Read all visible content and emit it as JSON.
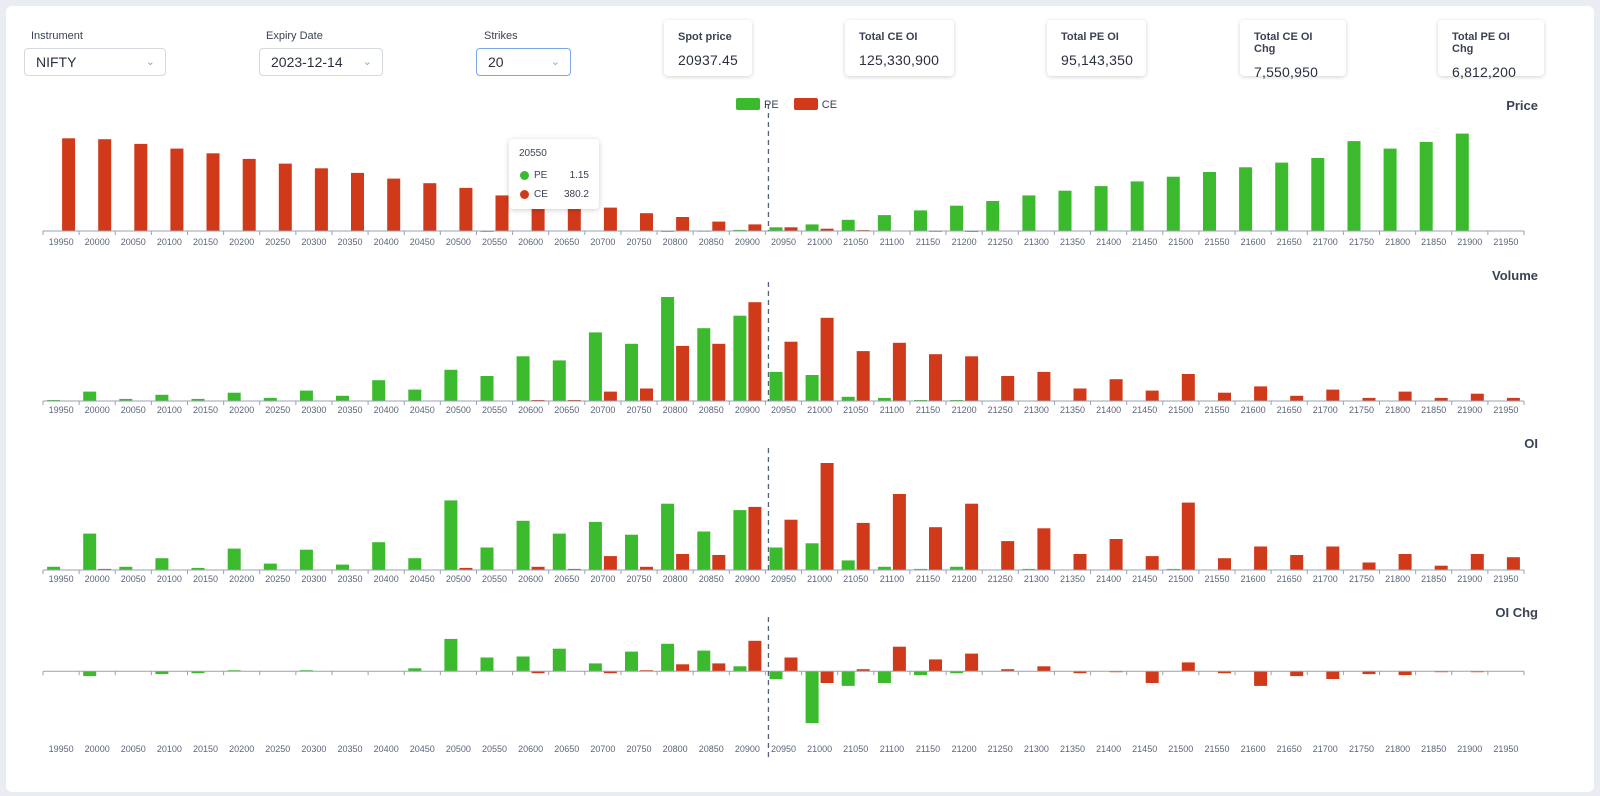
{
  "controls": {
    "instrument": {
      "label": "Instrument",
      "value": "NIFTY"
    },
    "expiry": {
      "label": "Expiry Date",
      "value": "2023-12-14"
    },
    "strikes": {
      "label": "Strikes",
      "value": "20"
    }
  },
  "stats": [
    {
      "label": "Spot price",
      "value": "20937.45"
    },
    {
      "label": "Total CE OI",
      "value": "125,330,900"
    },
    {
      "label": "Total PE OI",
      "value": "95,143,350"
    },
    {
      "label": "Total CE OI Chg",
      "value": "7,550,950"
    },
    {
      "label": "Total PE OI Chg",
      "value": "6,812,200"
    }
  ],
  "colors": {
    "pe": "#3cba2d",
    "ce": "#d03a1a",
    "axis": "#9aa2b1",
    "spot_line": "#55607a"
  },
  "legend": {
    "pe": "PE",
    "ce": "CE"
  },
  "tooltip": {
    "strike": "20550",
    "pe_label": "PE",
    "pe_value": "1.15",
    "ce_label": "CE",
    "ce_value": "380.2"
  },
  "chart_data": {
    "type": "bar",
    "categories": [
      "19950",
      "20000",
      "20050",
      "20100",
      "20150",
      "20200",
      "20250",
      "20300",
      "20350",
      "20400",
      "20450",
      "20500",
      "20550",
      "20600",
      "20650",
      "20700",
      "20750",
      "20800",
      "20850",
      "20900",
      "20950",
      "21000",
      "21050",
      "21100",
      "21150",
      "21200",
      "21250",
      "21300",
      "21350",
      "21400",
      "21450",
      "21500",
      "21550",
      "21600",
      "21650",
      "21700",
      "21750",
      "21800",
      "21850",
      "21900",
      "21950"
    ],
    "spot": 20937.45,
    "panels": [
      {
        "title": "Price",
        "ylim": [
          0,
          1100
        ],
        "series": [
          {
            "name": "PE",
            "values": [
              0,
              0,
              0,
              0,
              0,
              0,
              0,
              0,
              0,
              0,
              0,
              0,
              1.15,
              0,
              0,
              0,
              0,
              1,
              3,
              12,
              40,
              70,
              120,
              170,
              220,
              270,
              320,
              380,
              430,
              480,
              530,
              580,
              630,
              680,
              730,
              780,
              960,
              880,
              950,
              1040,
              0
            ]
          },
          {
            "name": "CE",
            "values": [
              990,
              980,
              930,
              880,
              830,
              770,
              720,
              670,
              620,
              560,
              510,
              460,
              380.2,
              350,
              300,
              250,
              190,
              150,
              100,
              70,
              40,
              25,
              10,
              5,
              2,
              1,
              0,
              0,
              0,
              0,
              0,
              0,
              0,
              0,
              0,
              0,
              0,
              0,
              0,
              0,
              0
            ]
          }
        ]
      },
      {
        "title": "Volume",
        "ylim": [
          0,
          100
        ],
        "series": [
          {
            "name": "PE",
            "values": [
              1,
              9,
              2,
              6,
              2,
              8,
              3,
              10,
              5,
              20,
              11,
              30,
              24,
              43,
              39,
              66,
              55,
              100,
              70,
              82,
              28,
              25,
              4,
              3,
              1,
              1,
              0,
              0,
              0,
              0,
              0,
              0,
              0,
              0,
              0,
              0,
              0,
              0,
              0,
              0,
              0
            ]
          },
          {
            "name": "CE",
            "values": [
              0,
              0,
              0,
              0,
              0,
              0,
              0,
              0,
              0,
              0,
              0,
              0,
              0,
              1,
              1,
              9,
              12,
              53,
              55,
              95,
              57,
              80,
              48,
              56,
              45,
              43,
              24,
              28,
              12,
              21,
              10,
              26,
              8,
              14,
              5,
              11,
              3,
              9,
              3,
              7,
              3
            ]
          }
        ]
      },
      {
        "title": "OI",
        "ylim": [
          0,
          100
        ],
        "series": [
          {
            "name": "PE",
            "values": [
              3,
              34,
              3,
              11,
              2,
              20,
              6,
              19,
              5,
              26,
              11,
              65,
              21,
              46,
              34,
              45,
              33,
              62,
              36,
              56,
              21,
              25,
              9,
              3,
              1,
              3,
              0,
              1,
              0,
              0,
              0,
              1,
              0,
              0,
              0,
              0,
              0,
              0,
              0,
              0,
              0
            ]
          },
          {
            "name": "CE",
            "values": [
              0,
              1,
              0,
              0,
              0,
              0,
              0,
              0,
              0,
              0,
              0,
              2,
              0,
              3,
              1,
              13,
              3,
              15,
              14,
              59,
              47,
              100,
              44,
              71,
              40,
              62,
              27,
              39,
              15,
              29,
              13,
              63,
              11,
              22,
              14,
              22,
              7,
              15,
              4,
              15,
              12
            ]
          }
        ]
      },
      {
        "title": "OI Chg",
        "ylim": [
          -60,
          40
        ],
        "series": [
          {
            "name": "PE",
            "values": [
              0,
              -5,
              0,
              -3,
              -2,
              1,
              0,
              1,
              0,
              0,
              3,
              33,
              14,
              15,
              23,
              8,
              20,
              28,
              21,
              5,
              -8,
              -53,
              -15,
              -12,
              -4,
              -2,
              0,
              0,
              0,
              0,
              0,
              0,
              0,
              0,
              0,
              0,
              0,
              0,
              0,
              0,
              0
            ]
          },
          {
            "name": "CE",
            "values": [
              0,
              0,
              0,
              0,
              0,
              0,
              0,
              0,
              0,
              0,
              0,
              0,
              0,
              -2,
              0,
              -2,
              1,
              7,
              8,
              31,
              14,
              -12,
              2,
              25,
              12,
              18,
              2,
              5,
              -2,
              -1,
              -12,
              9,
              -2,
              -15,
              -5,
              -8,
              -3,
              -4,
              -1,
              -1,
              0
            ]
          }
        ]
      }
    ]
  }
}
